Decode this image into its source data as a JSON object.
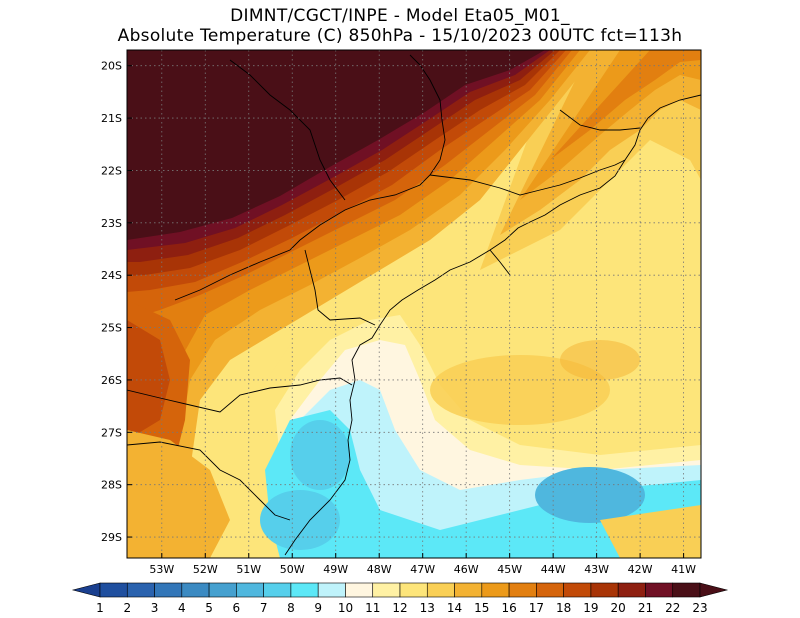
{
  "title": {
    "line1": "DIMNT/CGCT/INPE -  Model Eta05_M01_",
    "line2": "Absolute Temperature (C) 850hPa -  15/10/2023 00UTC fct=113h"
  },
  "map": {
    "lon_range": [
      -53.8,
      -40.6
    ],
    "lat_range": [
      -29.4,
      -19.7
    ],
    "lat_ticks": [
      {
        "value": -20,
        "label": "20S"
      },
      {
        "value": -21,
        "label": "21S"
      },
      {
        "value": -22,
        "label": "22S"
      },
      {
        "value": -23,
        "label": "23S"
      },
      {
        "value": -24,
        "label": "24S"
      },
      {
        "value": -25,
        "label": "25S"
      },
      {
        "value": -26,
        "label": "26S"
      },
      {
        "value": -27,
        "label": "27S"
      },
      {
        "value": -28,
        "label": "28S"
      },
      {
        "value": -29,
        "label": "29S"
      }
    ],
    "lon_ticks": [
      {
        "value": -53,
        "label": "53W"
      },
      {
        "value": -52,
        "label": "52W"
      },
      {
        "value": -51,
        "label": "51W"
      },
      {
        "value": -50,
        "label": "50W"
      },
      {
        "value": -49,
        "label": "49W"
      },
      {
        "value": -48,
        "label": "48W"
      },
      {
        "value": -47,
        "label": "47W"
      },
      {
        "value": -46,
        "label": "46W"
      },
      {
        "value": -45,
        "label": "45W"
      },
      {
        "value": -44,
        "label": "44W"
      },
      {
        "value": -43,
        "label": "43W"
      },
      {
        "value": -42,
        "label": "42W"
      },
      {
        "value": -41,
        "label": "41W"
      }
    ],
    "grid": "dotted"
  },
  "colorbar": {
    "labels": [
      "1",
      "2",
      "3",
      "4",
      "5",
      "6",
      "7",
      "8",
      "9",
      "10",
      "11",
      "12",
      "13",
      "14",
      "15",
      "16",
      "17",
      "18",
      "19",
      "20",
      "21",
      "22",
      "23"
    ],
    "colors": [
      "#1a3f8f",
      "#1f4f9f",
      "#2a62ae",
      "#3276b8",
      "#3b8ac2",
      "#45a0cf",
      "#4fb7de",
      "#56cfeb",
      "#5ce8f7",
      "#bff3fb",
      "#fff6e0",
      "#fff1a4",
      "#fde57a",
      "#f9cf55",
      "#f3b232",
      "#ec9a1a",
      "#e27f10",
      "#d5640b",
      "#c24a08",
      "#a83406",
      "#8e1f10",
      "#701024",
      "#4a0f17"
    ]
  }
}
